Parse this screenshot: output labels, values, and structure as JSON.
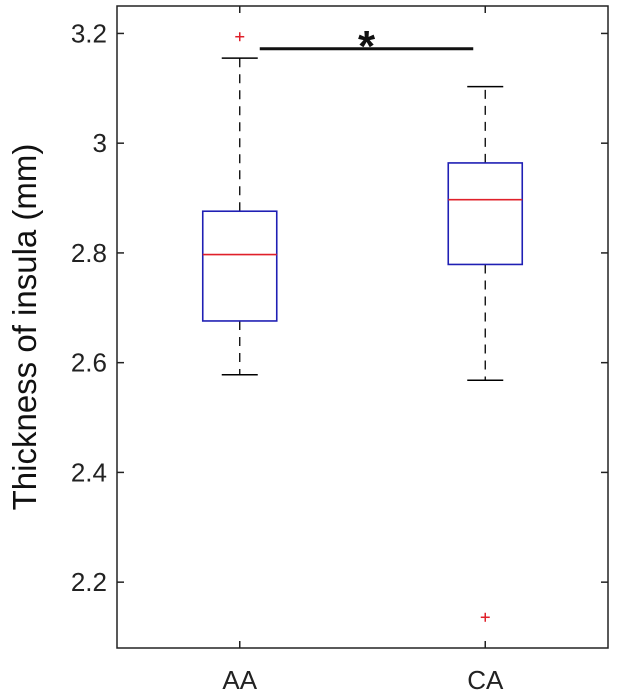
{
  "chart_data": {
    "type": "box",
    "ylabel": "Thickness of insula (mm)",
    "xlabel": "",
    "ylim": [
      2.08,
      3.25
    ],
    "yticks": [
      2.2,
      2.4,
      2.6,
      2.8,
      3.0,
      3.2
    ],
    "ytick_labels": [
      "2.2",
      "2.4",
      "2.6",
      "2.8",
      "3",
      "3.2"
    ],
    "categories": [
      "AA",
      "CA"
    ],
    "boxes": [
      {
        "label": "AA",
        "whisker_low": 2.578,
        "q1": 2.676,
        "median": 2.797,
        "q3": 2.876,
        "whisker_high": 3.155,
        "outliers": [
          3.194
        ]
      },
      {
        "label": "CA",
        "whisker_low": 2.568,
        "q1": 2.779,
        "median": 2.897,
        "q3": 2.964,
        "whisker_high": 3.103,
        "outliers": [
          2.136
        ]
      }
    ],
    "significance": {
      "from": "AA",
      "to": "CA",
      "y": 3.172,
      "text": "*"
    },
    "grid": false,
    "colors": {
      "box": "#1f1fb4",
      "median": "#e0202a",
      "whisker": "#000000",
      "outlier": "#e0202a",
      "axis": "#222222"
    }
  }
}
